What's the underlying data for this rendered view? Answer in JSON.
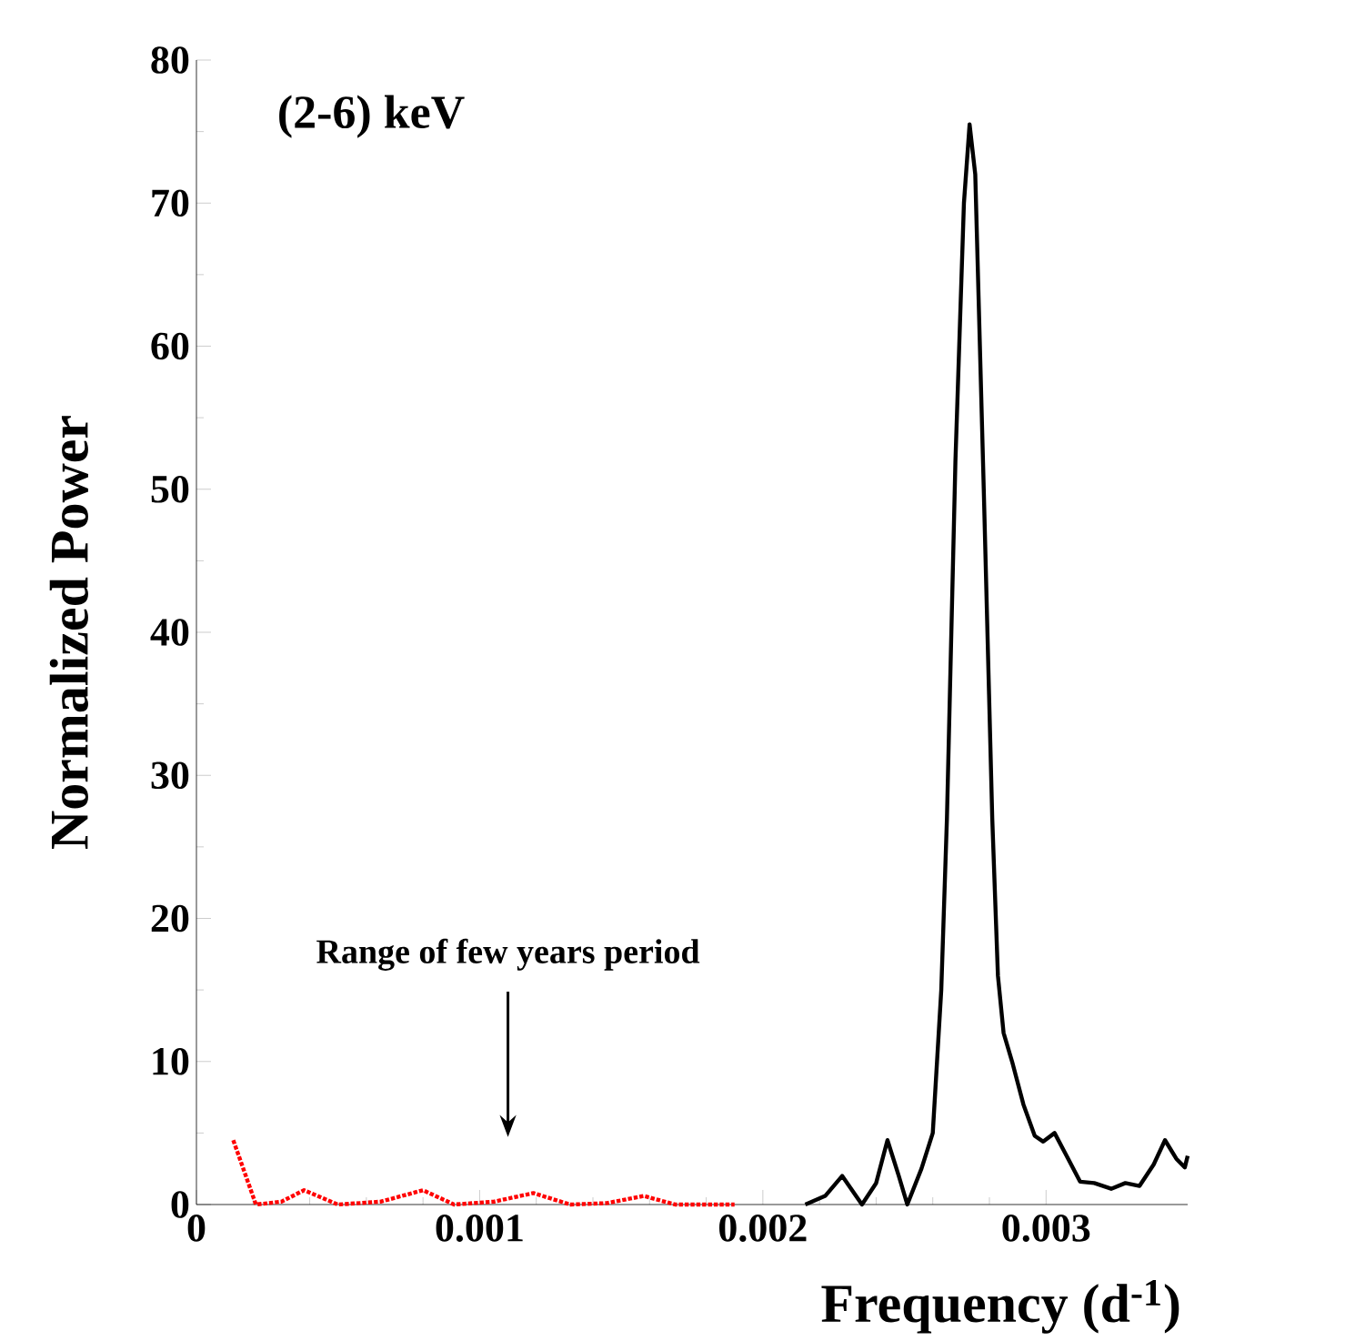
{
  "chart_data": {
    "type": "line",
    "title": "(2-6) keV",
    "xlabel": "Frequency (d$^{-1}$)",
    "ylabel": "Normalized Power",
    "xlim": [
      0,
      0.0035
    ],
    "ylim": [
      0,
      80
    ],
    "xticks": [
      0,
      0.001,
      0.002,
      0.003
    ],
    "yticks": [
      0,
      10,
      20,
      30,
      40,
      50,
      60,
      70,
      80
    ],
    "marker": "none",
    "annotations": [
      "Range of few years period"
    ],
    "series": [
      {
        "color": "#ff0000",
        "line_style": "dotted",
        "x": [
          0.00013,
          0.00021,
          0.0003,
          0.00038,
          0.0005,
          0.00065,
          0.0008,
          0.00091,
          0.00105,
          0.00119,
          0.00132,
          0.00145,
          0.00158,
          0.00169,
          0.0019
        ],
        "values": [
          4.5,
          0,
          0.2,
          1.0,
          0,
          0.2,
          1.0,
          0,
          0.2,
          0.8,
          0,
          0.1,
          0.6,
          0,
          0
        ]
      },
      {
        "color": "#000000",
        "line_style": "solid",
        "x": [
          0.00215,
          0.00222,
          0.00228,
          0.00235,
          0.0024,
          0.00244,
          0.00248,
          0.00251,
          0.00256,
          0.0026,
          0.00263,
          0.00265,
          0.00268,
          0.00271,
          0.00273,
          0.00275,
          0.00278,
          0.00281,
          0.00283,
          0.00285,
          0.00288,
          0.00292,
          0.00296,
          0.00299,
          0.00303,
          0.00307,
          0.00312,
          0.00317,
          0.00323,
          0.00328,
          0.00333,
          0.00338,
          0.00342,
          0.00346,
          0.00349,
          0.0035
        ],
        "values": [
          0,
          0.6,
          2,
          0,
          1.5,
          4.5,
          2,
          0,
          2.5,
          5,
          15,
          27,
          52,
          70,
          75.5,
          72,
          50,
          27,
          16,
          12,
          10,
          7,
          4.8,
          4.4,
          5,
          3.5,
          1.6,
          1.5,
          1.1,
          1.5,
          1.3,
          2.8,
          4.5,
          3.2,
          2.6,
          3.4
        ]
      }
    ]
  }
}
